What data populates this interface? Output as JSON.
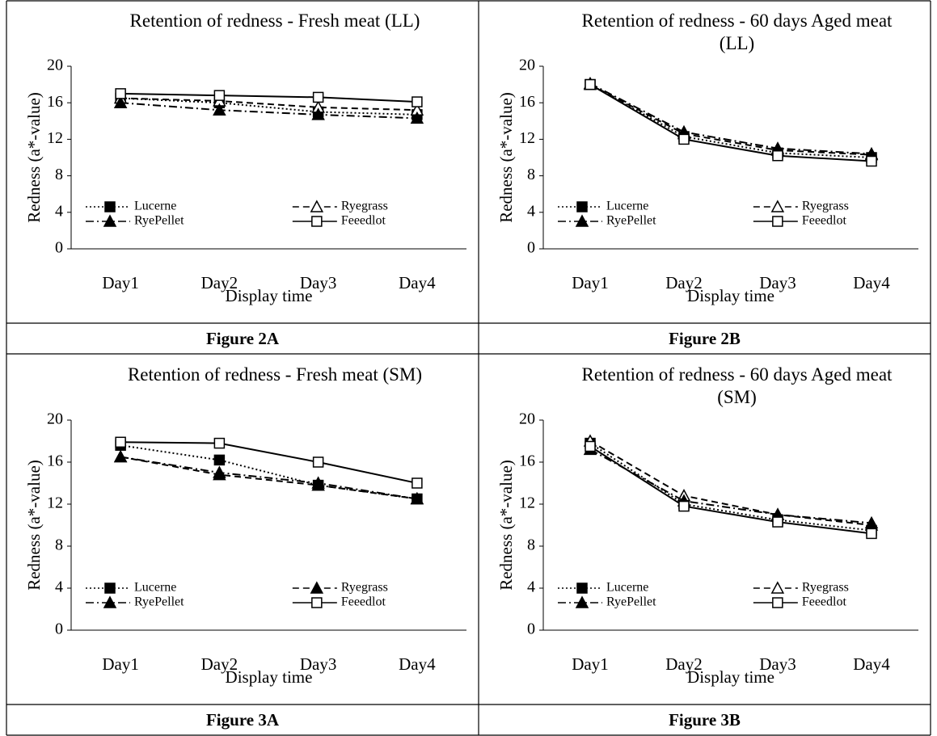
{
  "chart_data": [
    {
      "type": "line",
      "title": "Retention of redness - Fresh meat (LL)",
      "ylabel": "Redness (a*-value)",
      "xlabel": "Display time",
      "caption": "Figure 2A",
      "categories": [
        "Day1",
        "Day2",
        "Day3",
        "Day4"
      ],
      "ylim": [
        0,
        20
      ],
      "yticks": [
        0,
        4,
        8,
        12,
        16,
        20
      ],
      "legend": "bottom",
      "series": [
        {
          "name": "Lucerne",
          "color": "#000000",
          "marker": "square-filled",
          "dash": "dotted",
          "values": [
            16.5,
            16.0,
            15.0,
            14.7
          ]
        },
        {
          "name": "Ryegrass",
          "color": "#000000",
          "marker": "triangle-open",
          "dash": "dashed",
          "values": [
            16.5,
            16.2,
            15.5,
            15.2
          ]
        },
        {
          "name": "RyePellet",
          "color": "#000000",
          "marker": "triangle-filled",
          "dash": "dashdot",
          "values": [
            16.0,
            15.2,
            14.7,
            14.3
          ]
        },
        {
          "name": "Feeedlot",
          "color": "#000000",
          "marker": "square-open",
          "dash": "solid",
          "values": [
            17.0,
            16.8,
            16.6,
            16.1
          ]
        }
      ]
    },
    {
      "type": "line",
      "title": "Retention of redness - 60 days Aged meat (LL)",
      "ylabel": "Redness (a*-value)",
      "xlabel": "Display time",
      "caption": "Figure 2B",
      "categories": [
        "Day1",
        "Day2",
        "Day3",
        "Day4"
      ],
      "ylim": [
        0,
        20
      ],
      "yticks": [
        0,
        4,
        8,
        12,
        16,
        20
      ],
      "legend": "bottom",
      "series": [
        {
          "name": "Lucerne",
          "color": "#000000",
          "marker": "square-filled",
          "dash": "dotted",
          "values": [
            18.0,
            12.3,
            10.5,
            10.0
          ]
        },
        {
          "name": "Ryegrass",
          "color": "#000000",
          "marker": "triangle-open",
          "dash": "dashed",
          "values": [
            18.0,
            12.6,
            10.8,
            10.3
          ]
        },
        {
          "name": "RyePellet",
          "color": "#000000",
          "marker": "triangle-filled",
          "dash": "dashdot",
          "values": [
            18.1,
            12.8,
            11.0,
            10.4
          ]
        },
        {
          "name": "Feeedlot",
          "color": "#000000",
          "marker": "square-open",
          "dash": "solid",
          "values": [
            18.0,
            12.0,
            10.2,
            9.6
          ]
        }
      ]
    },
    {
      "type": "line",
      "title": "Retention of redness - Fresh meat (SM)",
      "ylabel": "Redness (a*-value)",
      "xlabel": "Display time",
      "caption": "Figure 3A",
      "categories": [
        "Day1",
        "Day2",
        "Day3",
        "Day4"
      ],
      "ylim": [
        0,
        20
      ],
      "yticks": [
        0,
        4,
        8,
        12,
        16,
        20
      ],
      "legend": "bottom",
      "series": [
        {
          "name": "Lucerne",
          "color": "#000000",
          "marker": "square-filled",
          "dash": "dotted",
          "values": [
            17.6,
            16.2,
            13.8,
            12.5
          ]
        },
        {
          "name": "Ryegrass",
          "color": "#000000",
          "marker": "triangle-filled",
          "dash": "dashed",
          "values": [
            16.5,
            14.8,
            13.8,
            12.5
          ]
        },
        {
          "name": "RyePellet",
          "color": "#000000",
          "marker": "triangle-filled",
          "dash": "dashdot",
          "values": [
            16.5,
            15.0,
            14.0,
            12.5
          ]
        },
        {
          "name": "Feeedlot",
          "color": "#000000",
          "marker": "square-open",
          "dash": "solid",
          "values": [
            17.9,
            17.8,
            16.0,
            14.0
          ]
        }
      ]
    },
    {
      "type": "line",
      "title": "Retention of redness - 60 days Aged meat (SM)",
      "ylabel": "Redness (a*-value)",
      "xlabel": "Display time",
      "caption": "Figure 3B",
      "categories": [
        "Day1",
        "Day2",
        "Day3",
        "Day4"
      ],
      "ylim": [
        0,
        20
      ],
      "yticks": [
        0,
        4,
        8,
        12,
        16,
        20
      ],
      "legend": "bottom",
      "series": [
        {
          "name": "Lucerne",
          "color": "#000000",
          "marker": "square-filled",
          "dash": "dotted",
          "values": [
            17.8,
            12.0,
            10.5,
            9.5
          ]
        },
        {
          "name": "Ryegrass",
          "color": "#000000",
          "marker": "triangle-open",
          "dash": "dashed",
          "values": [
            18.0,
            12.8,
            11.0,
            10.0
          ]
        },
        {
          "name": "RyePellet",
          "color": "#000000",
          "marker": "triangle-filled",
          "dash": "dashdot",
          "values": [
            17.2,
            12.3,
            11.0,
            10.2
          ]
        },
        {
          "name": "Feeedlot",
          "color": "#000000",
          "marker": "square-open",
          "dash": "solid",
          "values": [
            17.5,
            11.8,
            10.3,
            9.2
          ]
        }
      ]
    }
  ]
}
